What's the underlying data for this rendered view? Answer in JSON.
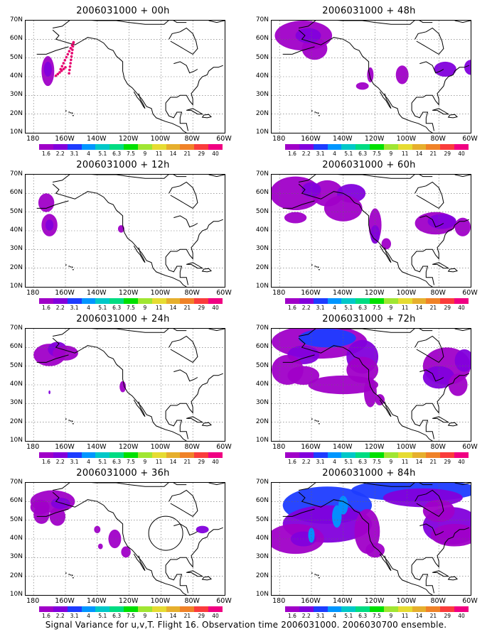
{
  "panels": [
    {
      "title": "2006031000 + 00h",
      "lead": 0
    },
    {
      "title": "2006031000 + 48h",
      "lead": 48
    },
    {
      "title": "2006031000 + 12h",
      "lead": 12
    },
    {
      "title": "2006031000 + 60h",
      "lead": 60
    },
    {
      "title": "2006031000 + 24h",
      "lead": 24
    },
    {
      "title": "2006031000 + 72h",
      "lead": 72
    },
    {
      "title": "2006031000 + 36h",
      "lead": 36
    },
    {
      "title": "2006031000 + 84h",
      "lead": 84
    }
  ],
  "map": {
    "lat_labels": [
      "70N",
      "60N",
      "50N",
      "40N",
      "30N",
      "20N",
      "10N"
    ],
    "lon_labels": [
      "180",
      "160W",
      "140W",
      "120W",
      "100W",
      "80W",
      "60W"
    ],
    "lat_range": [
      10,
      70
    ],
    "lon_range": [
      -185,
      -60
    ],
    "gridlines": "dotted"
  },
  "colorbar": {
    "labels": [
      "1.6",
      "2.2",
      "3.1",
      "4",
      "5.1",
      "6.3",
      "7.5",
      "9",
      "11",
      "14",
      "21",
      "29",
      "40"
    ],
    "colors": [
      "#a000c8",
      "#8200dc",
      "#1e3cff",
      "#0096ff",
      "#00c8c8",
      "#00dc82",
      "#00e000",
      "#a0e632",
      "#e6dc32",
      "#e6af2d",
      "#f08228",
      "#fa3c3c",
      "#f00082"
    ]
  },
  "caption": "Signal Variance for u,v,T. Flight 16. Observation time 2006031000. 2006030700 ensemble."
}
